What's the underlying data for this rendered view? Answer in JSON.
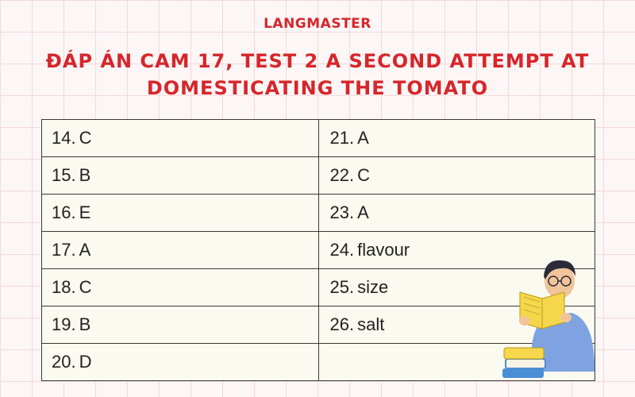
{
  "brand": "LANGMASTER",
  "title": "ĐÁP ÁN CAM 17, TEST 2 A SECOND ATTEMPT AT DOMESTICATING THE TOMATO",
  "answers_left": [
    {
      "num": "14.",
      "answer": "C"
    },
    {
      "num": "15.",
      "answer": "B"
    },
    {
      "num": "16.",
      "answer": "E"
    },
    {
      "num": "17.",
      "answer": "A"
    },
    {
      "num": "18.",
      "answer": "C"
    },
    {
      "num": "19.",
      "answer": "B"
    },
    {
      "num": "20.",
      "answer": "D"
    }
  ],
  "answers_right": [
    {
      "num": "21.",
      "answer": "A"
    },
    {
      "num": "22.",
      "answer": "C"
    },
    {
      "num": "23.",
      "answer": "A"
    },
    {
      "num": "24.",
      "answer": "flavour"
    },
    {
      "num": "25.",
      "answer": "size"
    },
    {
      "num": "26.",
      "answer": "salt"
    },
    {
      "num": "",
      "answer": ""
    }
  ],
  "illustration": "person-reading-book-icon",
  "colors": {
    "brand_red": "#d6262b",
    "grid": "#f3d9d9",
    "table_bg": "#fbfaf0"
  }
}
